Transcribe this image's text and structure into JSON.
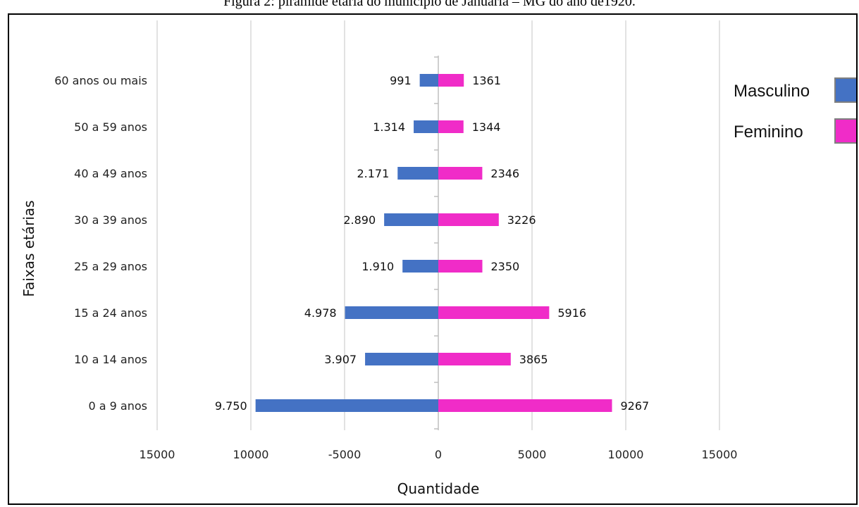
{
  "figure": {
    "caption": "Figura 2: pirâmide etária do município de Januária – MG do ano de1920."
  },
  "chart_data": {
    "type": "bar",
    "orientation": "horizontal",
    "stacked": "diverging",
    "categories": [
      "0 a 9 anos",
      "10 a 14 anos",
      "15 a 24 anos",
      "25 a 29 anos",
      "30 a 39 anos",
      "40 a 49 anos",
      "50 a 59 anos",
      "60 anos ou mais"
    ],
    "series": [
      {
        "name": "Masculino",
        "color": "#4472C4",
        "values": [
          -9750,
          -3907,
          -4978,
          -1910,
          -2890,
          -2171,
          -1314,
          -991
        ],
        "labels": [
          "9.750",
          "3.907",
          "4.978",
          "1.910",
          "2.890",
          "2.171",
          "1.314",
          "991"
        ]
      },
      {
        "name": "Feminino",
        "color": "#F02CC8",
        "values": [
          9267,
          3865,
          5916,
          2350,
          3226,
          2346,
          1344,
          1361
        ],
        "labels": [
          "9267",
          "3865",
          "5916",
          "2350",
          "3226",
          "2346",
          "1344",
          "1361"
        ]
      }
    ],
    "xlabel": "Quantidade",
    "ylabel": "Faixas etárias",
    "xlim": [
      -15000,
      15000
    ],
    "xticks": [
      -15000,
      -10000,
      -5000,
      0,
      5000,
      10000,
      15000
    ],
    "xtick_labels": [
      "15000",
      "10000",
      "-5000",
      "0",
      "5000",
      "10000",
      "15000"
    ],
    "grid": "vertical",
    "legend": "right"
  }
}
